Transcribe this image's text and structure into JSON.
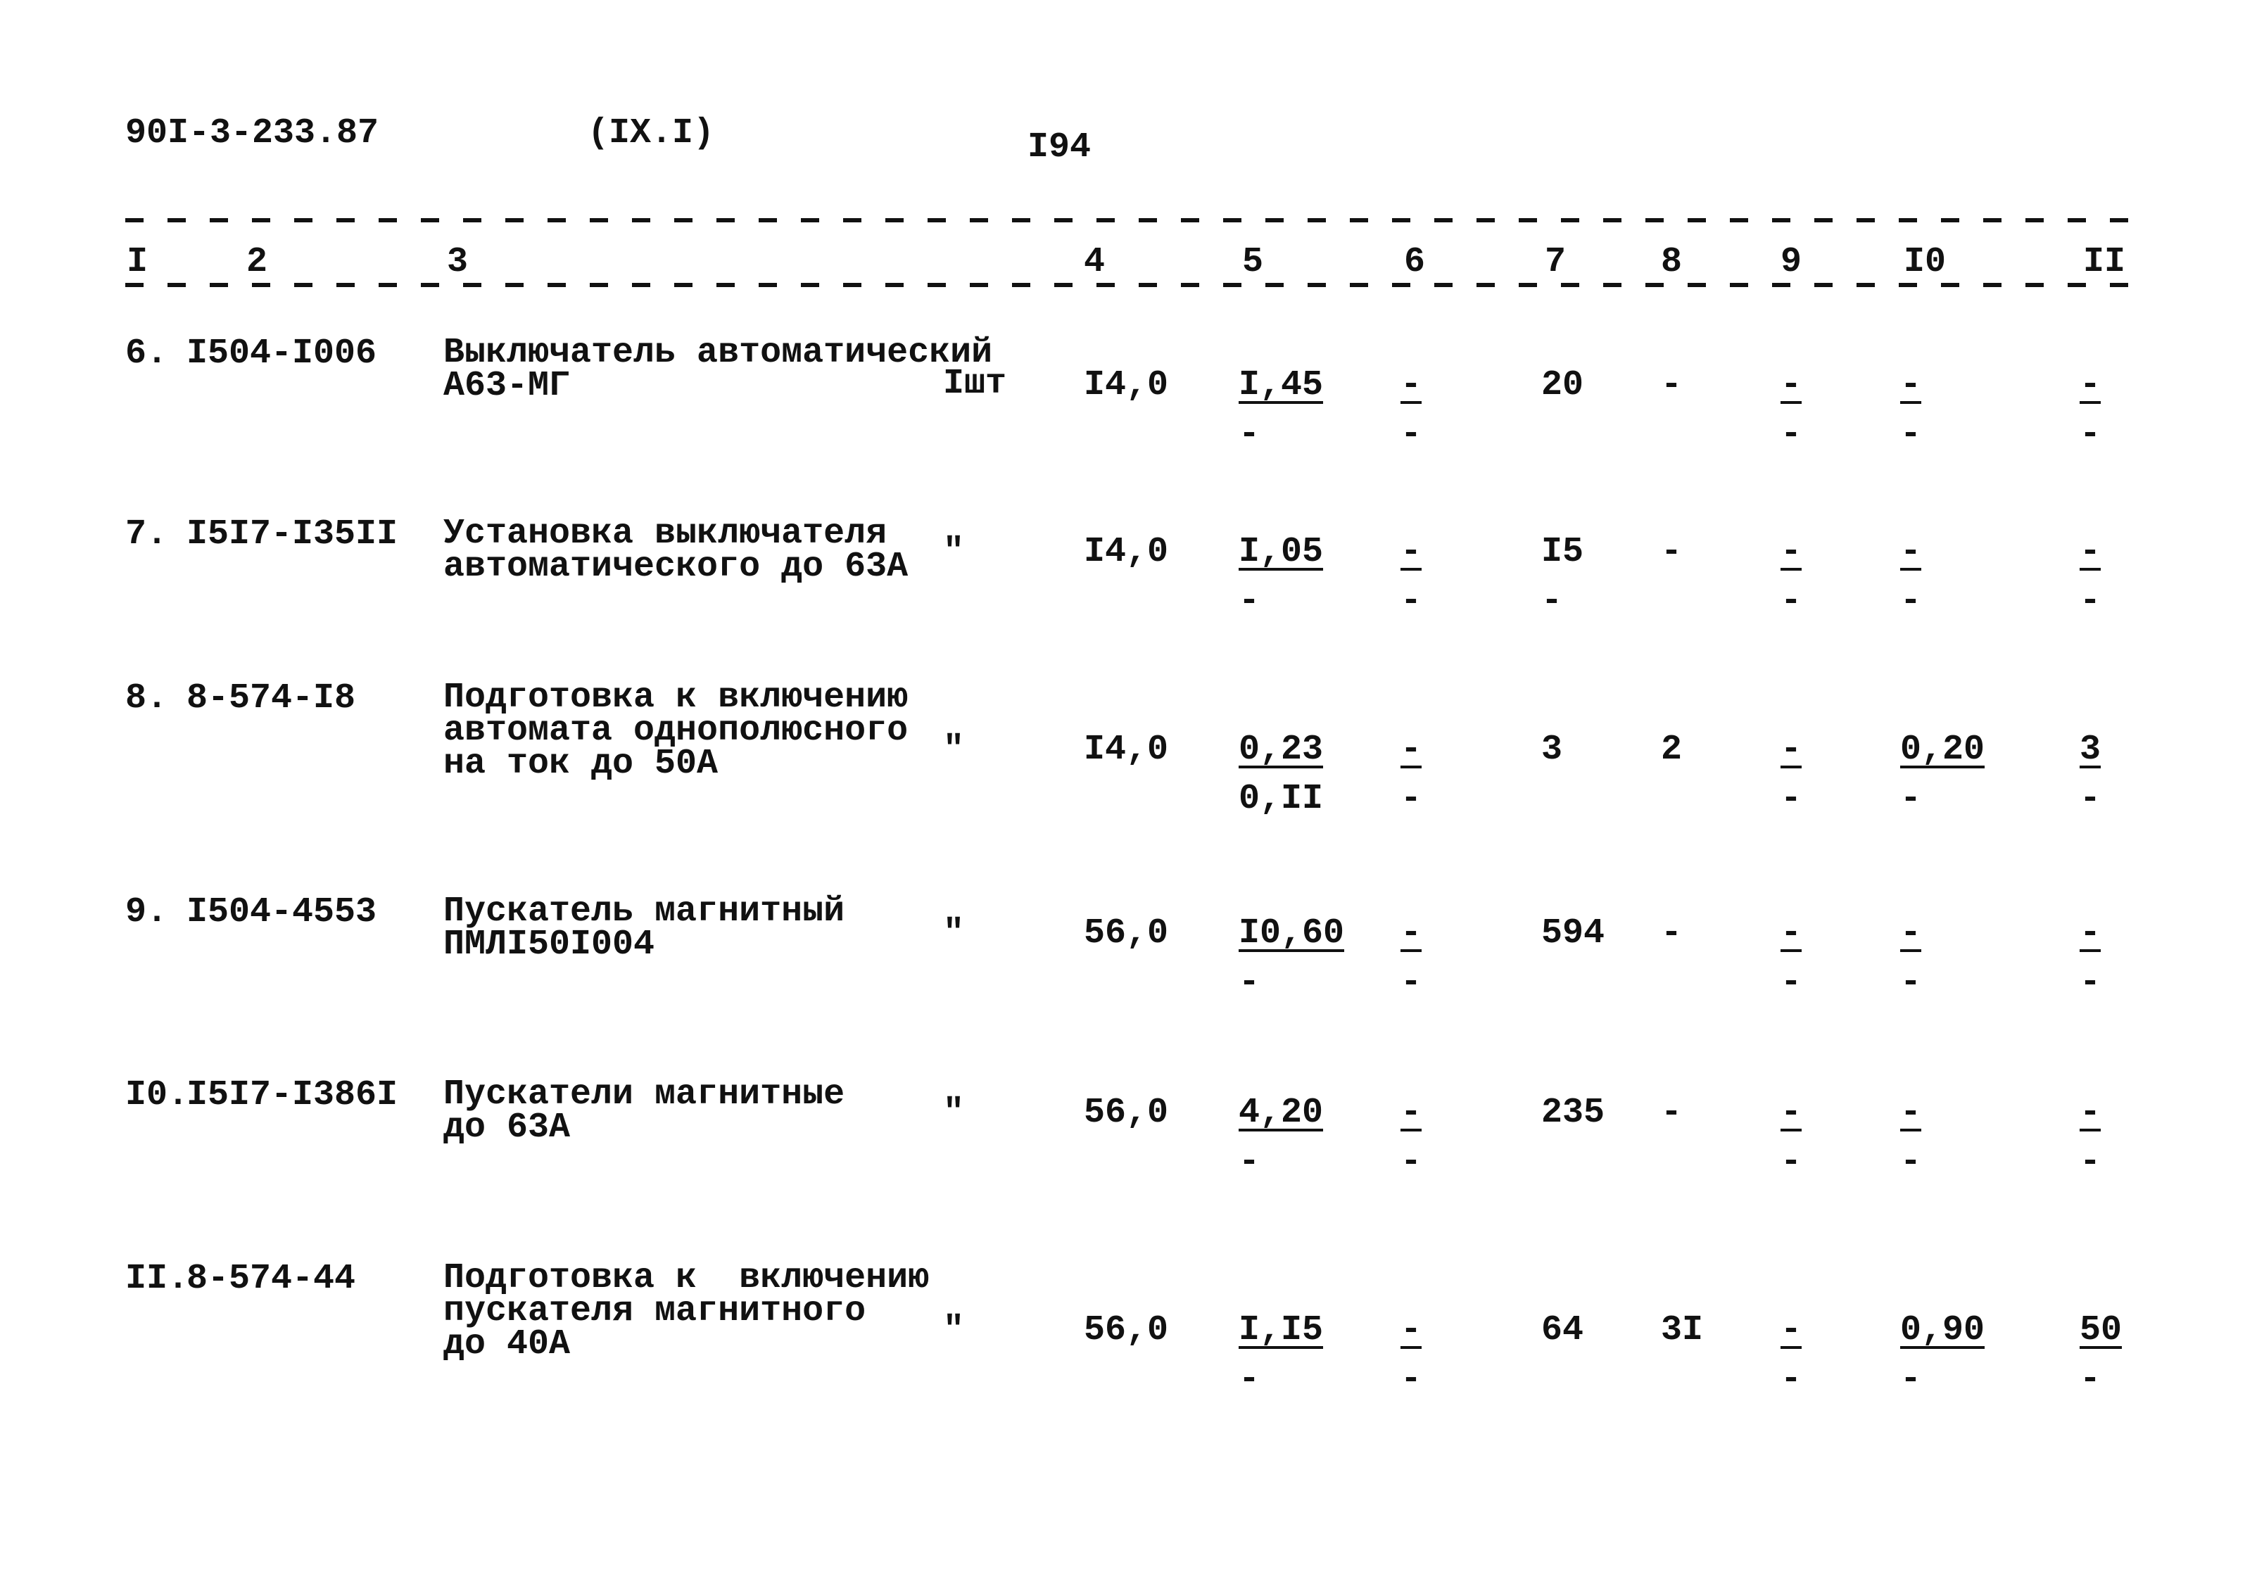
{
  "header": {
    "doc_code": "90I-3-233.87",
    "section": "(IX.I)",
    "page_number": "I94"
  },
  "columns": [
    "I",
    "2",
    "3",
    "4",
    "5",
    "6",
    "7",
    "8",
    "9",
    "I0",
    "II"
  ],
  "rows": [
    {
      "no": "6.",
      "code": "I504-I006",
      "desc": [
        "Выключатель автоматический",
        "А63-МГ"
      ],
      "unit": "Iшт",
      "c4": "I4,0",
      "c5": [
        "I,45",
        "-"
      ],
      "c6": [
        "-",
        "-"
      ],
      "c7": [
        "20",
        ""
      ],
      "c8": "-",
      "c9": [
        "-",
        "-"
      ],
      "c10": [
        "-",
        "-"
      ],
      "c11": [
        "-",
        "-"
      ]
    },
    {
      "no": "7.",
      "code": "I5I7-I35II",
      "desc": [
        "Установка выключателя",
        "автоматического до 63А"
      ],
      "unit": "\"",
      "c4": "I4,0",
      "c5": [
        "I,05",
        "-"
      ],
      "c6": [
        "-",
        "-"
      ],
      "c7": [
        "I5",
        "-"
      ],
      "c8": "-",
      "c9": [
        "-",
        "-"
      ],
      "c10": [
        "-",
        "-"
      ],
      "c11": [
        "-",
        "-"
      ]
    },
    {
      "no": "8.",
      "code": "8-574-I8",
      "desc": [
        "Подготовка к включению",
        "автомата однополюсного",
        "на ток до 50А"
      ],
      "unit": "\"",
      "c4": "I4,0",
      "c5": [
        "0,23",
        "0,II"
      ],
      "c6": [
        "-",
        "-"
      ],
      "c7": [
        "3",
        ""
      ],
      "c8": "2",
      "c9": [
        "-",
        "-"
      ],
      "c10": [
        "0,20",
        "-"
      ],
      "c11": [
        "3",
        "-"
      ]
    },
    {
      "no": "9.",
      "code": "I504-4553",
      "desc": [
        "Пускатель магнитный",
        "ПМЛI50I004"
      ],
      "unit": "\"",
      "c4": "56,0",
      "c5": [
        "I0,60",
        "-"
      ],
      "c6": [
        "-",
        "-"
      ],
      "c7": [
        "594",
        ""
      ],
      "c8": "-",
      "c9": [
        "-",
        "-"
      ],
      "c10": [
        "-",
        "-"
      ],
      "c11": [
        "-",
        "-"
      ]
    },
    {
      "no": "I0.",
      "code": "I5I7-I386I",
      "desc": [
        "Пускатели магнитные",
        "до 63А"
      ],
      "unit": "\"",
      "c4": "56,0",
      "c5": [
        "4,20",
        "-"
      ],
      "c6": [
        "-",
        "-"
      ],
      "c7": [
        "235",
        ""
      ],
      "c8": "-",
      "c9": [
        "-",
        "-"
      ],
      "c10": [
        "-",
        "-"
      ],
      "c11": [
        "-",
        "-"
      ]
    },
    {
      "no": "II.",
      "code": "8-574-44",
      "desc": [
        "Подготовка к  включению",
        "пускателя магнитного",
        "до 40А"
      ],
      "unit": "\"",
      "c4": "56,0",
      "c5": [
        "I,I5",
        "-"
      ],
      "c6": [
        "-",
        "-"
      ],
      "c7": [
        "64",
        ""
      ],
      "c8": "3I",
      "c9": [
        "-",
        "-"
      ],
      "c10": [
        "0,90",
        "-"
      ],
      "c11": [
        "50",
        "-"
      ]
    }
  ]
}
